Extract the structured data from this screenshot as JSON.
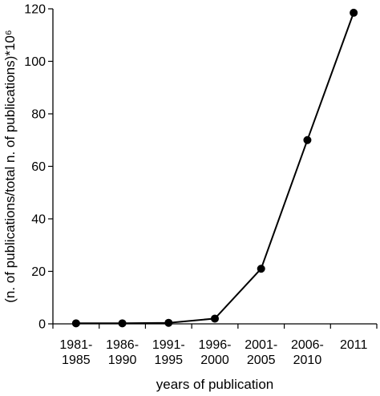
{
  "chart_data": {
    "type": "line",
    "categories": [
      [
        "1981-",
        "1985"
      ],
      [
        "1986-",
        "1990"
      ],
      [
        "1991-",
        "1995"
      ],
      [
        "1996-",
        "2000"
      ],
      [
        "2001-",
        "2005"
      ],
      [
        "2006-",
        "2010"
      ],
      [
        "2011"
      ]
    ],
    "values": [
      0.2,
      0.2,
      0.4,
      2,
      21,
      70,
      118.5
    ],
    "xlabel": "years of publication",
    "ylabel": "(n. of publications/total n. of publications)*10⁶",
    "ylim": [
      0,
      120
    ],
    "yticks": [
      0,
      20,
      40,
      60,
      80,
      100,
      120
    ],
    "grid": false,
    "legend": "none",
    "color": "#000000"
  }
}
